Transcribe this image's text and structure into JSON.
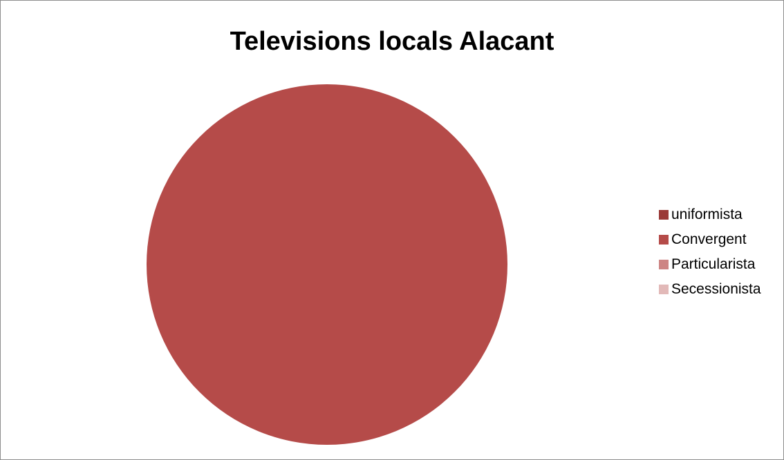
{
  "chart_data": {
    "type": "pie",
    "title": "Televisions locals Alacant",
    "categories": [
      "uniformista",
      "Convergent",
      "Particularista",
      "Secessionista"
    ],
    "values": [
      0,
      1,
      0,
      0
    ],
    "colors": [
      "#9B3A38",
      "#B54B49",
      "#CD8584",
      "#E2B9B8"
    ],
    "legend_position": "right"
  }
}
